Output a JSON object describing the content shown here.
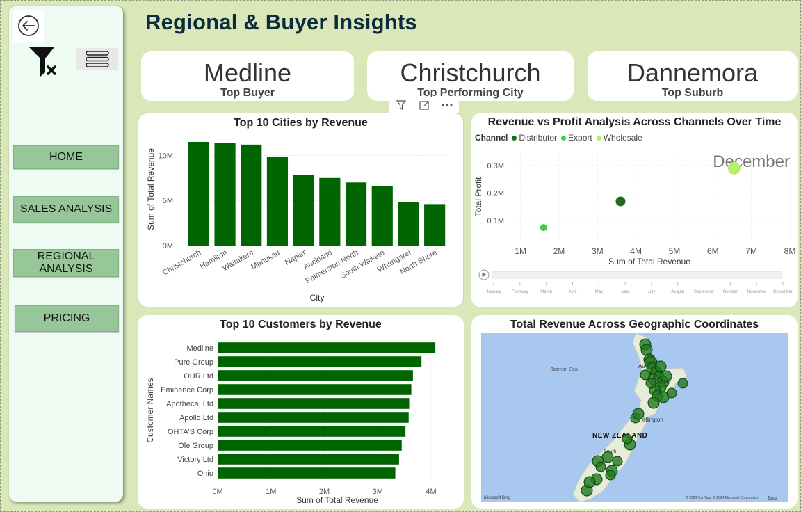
{
  "page": {
    "title": "Regional & Buyer Insights"
  },
  "sidebar": {
    "nav": [
      {
        "id": "home",
        "label": "HOME"
      },
      {
        "id": "sales",
        "label": "SALES ANALYSIS"
      },
      {
        "id": "regional",
        "label": "REGIONAL ANALYSIS"
      },
      {
        "id": "pricing",
        "label": "PRICING"
      }
    ]
  },
  "kpis": [
    {
      "value": "Medline",
      "label": "Top Buyer"
    },
    {
      "value": "Christchurch",
      "label": "Top Performing City"
    },
    {
      "value": "Dannemora",
      "label": "Top Suburb"
    }
  ],
  "cities_chart": {
    "title": "Top 10 Cities by Revenue",
    "color": "#006400"
  },
  "scatter_chart": {
    "title": "Revenue vs Profit Analysis Across Channels Over Time",
    "legend_title": "Channel",
    "play_axis_label": "December",
    "play_months": [
      "January",
      "February",
      "March",
      "April",
      "May",
      "June",
      "July",
      "August",
      "September",
      "October",
      "November",
      "December"
    ]
  },
  "customers_chart": {
    "title": "Top 10 Customers by Revenue",
    "color": "#006400"
  },
  "map": {
    "title": "Total Revenue Across Geographic Coordinates",
    "labels": {
      "country": "NEW ZEALAND",
      "sea": "Tasman Sea",
      "city_a": "Au",
      "city_w": "ellington",
      "south": "South",
      "bing": "Microsoft Bing",
      "credits": "© 2024 TomTom, © 2024 Microsoft Corporation",
      "terms": "Terms"
    },
    "marker_color": "#1e7a1e",
    "land_color": "#e6ecd9",
    "sea_color": "#a8c8f0"
  },
  "chart_data": [
    {
      "type": "bar",
      "title": "Top 10 Cities by Revenue",
      "xlabel": "City",
      "ylabel": "Sum of Total Revenue",
      "categories": [
        "Christchurch",
        "Hamilton",
        "Waitakere",
        "Manukau",
        "Napier",
        "Auckland",
        "Palmerston North",
        "South Waikato",
        "Whangarei",
        "North Shore"
      ],
      "values": [
        11.5,
        11.4,
        11.2,
        9.8,
        7.8,
        7.5,
        7.0,
        6.6,
        4.8,
        4.6
      ],
      "unit": "M",
      "yticks": [
        "0M",
        "5M",
        "10M"
      ],
      "ylim": [
        0,
        12.5
      ]
    },
    {
      "type": "scatter",
      "title": "Revenue vs Profit Analysis Across Channels Over Time",
      "xlabel": "Sum of Total Revenue",
      "ylabel": "Total Profit",
      "xticks": [
        "1M",
        "2M",
        "3M",
        "4M",
        "5M",
        "6M",
        "7M",
        "8M"
      ],
      "yticks": [
        "0.1M",
        "0.2M",
        "0.3M"
      ],
      "xlim": [
        0.7,
        8
      ],
      "ylim": [
        0.03,
        0.34
      ],
      "series": [
        {
          "name": "Distributor",
          "color": "#1a6e1a",
          "points": [
            [
              3.6,
              0.17
            ]
          ]
        },
        {
          "name": "Export",
          "color": "#3fcf3f",
          "points": [
            [
              1.6,
              0.075
            ]
          ]
        },
        {
          "name": "Wholesale",
          "color": "#b5f06e",
          "points": [
            [
              6.55,
              0.29
            ]
          ]
        }
      ]
    },
    {
      "type": "bar",
      "orientation": "horizontal",
      "title": "Top 10 Customers by Revenue",
      "xlabel": "Sum of Total Revenue",
      "ylabel": "Customer Names",
      "categories": [
        "Medline",
        "Pure Group",
        "OUR Ltd",
        "Eminence Corp",
        "Apotheca, Ltd",
        "Apollo Ltd",
        "OHTA'S Corp",
        "Ole Group",
        "Victory Ltd",
        "Ohio"
      ],
      "values": [
        4.08,
        3.82,
        3.66,
        3.63,
        3.59,
        3.58,
        3.52,
        3.45,
        3.4,
        3.33
      ],
      "unit": "M",
      "xticks": [
        "0M",
        "1M",
        "2M",
        "3M",
        "4M"
      ],
      "xlim": [
        0,
        4.3
      ]
    }
  ]
}
